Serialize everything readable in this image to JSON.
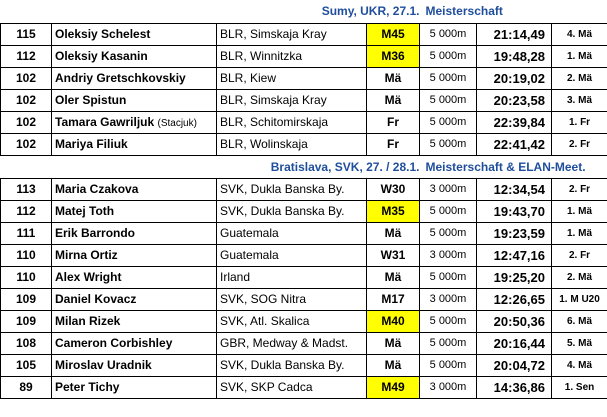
{
  "sections": [
    {
      "location": "Sumy, UKR, 27.1.",
      "event": "Meisterschaft",
      "rows": [
        {
          "num": "115",
          "name": "Oleksiy Schelest",
          "note": "",
          "club": "BLR, Simskaja Kray",
          "cat": "M45",
          "hl": true,
          "dist": "5 000m",
          "time": "21:14,49",
          "place": "4. Mä"
        },
        {
          "num": "112",
          "name": "Oleksiy Kasanin",
          "note": "",
          "club": "BLR, Winnitzka",
          "cat": "M36",
          "hl": true,
          "dist": "5 000m",
          "time": "19:48,28",
          "place": "1. Mä"
        },
        {
          "num": "102",
          "name": "Andriy Gretschkovskiy",
          "note": "",
          "club": "BLR, Kiew",
          "cat": "Mä",
          "hl": false,
          "dist": "5 000m",
          "time": "20:19,02",
          "place": "2. Mä"
        },
        {
          "num": "102",
          "name": "Oler Spistun",
          "note": "",
          "club": "BLR, Simskaja Kray",
          "cat": "Mä",
          "hl": false,
          "dist": "5 000m",
          "time": "20:23,58",
          "place": "3. Mä"
        },
        {
          "num": "102",
          "name": "Tamara Gawriljuk",
          "note": "(Stacjuk)",
          "club": "BLR, Schitomirskaja",
          "cat": "Fr",
          "hl": false,
          "dist": "5 000m",
          "time": "22:39,84",
          "place": "1. Fr"
        },
        {
          "num": "102",
          "name": "Mariya Filiuk",
          "note": "",
          "club": "BLR, Wolinskaja",
          "cat": "Fr",
          "hl": false,
          "dist": "5 000m",
          "time": "22:41,42",
          "place": "2. Fr"
        }
      ]
    },
    {
      "location": "Bratislava, SVK, 27. / 28.1.",
      "event": "Meisterschaft & ELAN-Meet.",
      "rows": [
        {
          "num": "113",
          "name": "Maria Czakova",
          "note": "",
          "club": "SVK, Dukla Banska By.",
          "cat": "W30",
          "hl": false,
          "dist": "3 000m",
          "time": "12:34,54",
          "place": "2. Fr"
        },
        {
          "num": "112",
          "name": "Matej Toth",
          "note": "",
          "club": "SVK, Dukla Banska By.",
          "cat": "M35",
          "hl": true,
          "dist": "5 000m",
          "time": "19:43,70",
          "place": "1. Mä"
        },
        {
          "num": "111",
          "name": "Erik Barrondo",
          "note": "",
          "club": "Guatemala",
          "cat": "Mä",
          "hl": false,
          "dist": "5 000m",
          "time": "19:23,59",
          "place": "1. Mä"
        },
        {
          "num": "110",
          "name": "Mirna Ortiz",
          "note": "",
          "club": "Guatemala",
          "cat": "W31",
          "hl": false,
          "dist": "3 000m",
          "time": "12:47,16",
          "place": "2. Fr"
        },
        {
          "num": "110",
          "name": "Alex Wright",
          "note": "",
          "club": "Irland",
          "cat": "Mä",
          "hl": false,
          "dist": "5 000m",
          "time": "19:25,20",
          "place": "2. Mä"
        },
        {
          "num": "109",
          "name": "Daniel Kovacz",
          "note": "",
          "club": "SVK, SOG Nitra",
          "cat": "M17",
          "hl": false,
          "dist": "3 000m",
          "time": "12:26,65",
          "place": "1. M U20"
        },
        {
          "num": "109",
          "name": "Milan Rizek",
          "note": "",
          "club": "SVK, Atl. Skalica",
          "cat": "M40",
          "hl": true,
          "dist": "5 000m",
          "time": "20:50,36",
          "place": "6. Mä"
        },
        {
          "num": "108",
          "name": "Cameron Corbishley",
          "note": "",
          "club": "GBR, Medway & Madst.",
          "cat": "Mä",
          "hl": false,
          "dist": "5 000m",
          "time": "20:16,44",
          "place": "5. Mä"
        },
        {
          "num": "105",
          "name": "Miroslav Uradnik",
          "note": "",
          "club": "SVK, Dukla Banska By.",
          "cat": "Mä",
          "hl": false,
          "dist": "5 000m",
          "time": "20:04,72",
          "place": "4. Mä"
        },
        {
          "num": "89",
          "name": "Peter Tichy",
          "note": "",
          "club": "SVK, SKP Cadca",
          "cat": "M49",
          "hl": true,
          "dist": "3 000m",
          "time": "14:36,86",
          "place": "1. Sen"
        }
      ]
    }
  ]
}
